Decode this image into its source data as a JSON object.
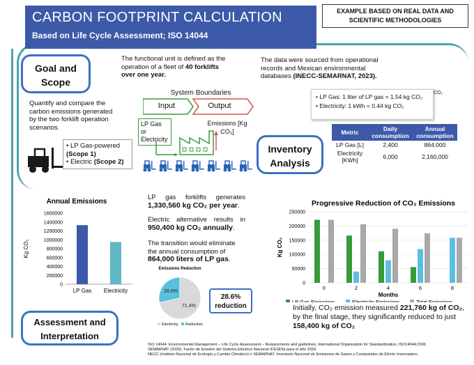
{
  "header": {
    "title": "CARBON FOOTPRINT CALCULATION",
    "subtitle": "Based on Life Cycle Assessment; ISO 14044",
    "example_note": "EXAMPLE BASED ON REAL DATA AND SCIENTIFIC METHODOLOGIES"
  },
  "goal": {
    "label": "Goal and Scope",
    "unit_text_1": "The functional unit is defined as the operation of a fleet of ",
    "unit_bold": "40 forklifts over one year.",
    "quantify_text": "Quantify and compare the carbon emissions generated by the two forklift operation scenarios.",
    "scenario_1_text": "LP Gas-powered ",
    "scenario_1_bold": "(Scope 1)",
    "scenario_2_text": "Electric ",
    "scenario_2_bold": "(Scope 2)"
  },
  "system": {
    "title": "System Boundaries",
    "input_label": "Input",
    "output_label": "Output",
    "source_label": "LP Gas or Electricity",
    "emissions_label": "Emissions [Kg CO₂]"
  },
  "inventory": {
    "label": "Inventory Analysis",
    "source_text": "The data were sourced from operational records and Mexican environmental databases ",
    "source_bold": "(INECC-SEMARNAT, 2023).",
    "factor_1": "LP Gas: 1 liter of LP gas = 1.54 kg CO₂",
    "factor_2": "Electricity: 1 kWh = 0.44 kg CO₂",
    "co2_tag": "CO₂",
    "table": {
      "headers": [
        "Metric",
        "Daily consumption",
        "Annual consumption"
      ],
      "rows": [
        [
          "LP Gas [L]",
          "2,400",
          "864,000"
        ],
        [
          "Electricity [KWh]",
          "6,000",
          "2,160,000"
        ]
      ]
    }
  },
  "interpretation": {
    "p1_text": "LP gas forklifts generates ",
    "p1_bold": "1,330,560 kg CO₂ per year",
    "p1_end": ".",
    "p2_text": "Electric alternative results in ",
    "p2_bold": "950,400 kg CO₂ annually",
    "p2_end": ".",
    "p3_text": "The transition would eliminate the annual consumption of ",
    "p3_bold": "864,000 liters of LP gas",
    "p3_end": ".",
    "reduction_pct": "28.6%",
    "reduction_word": "reduction",
    "summary_text_1": "Initially, CO₂ emission measured ",
    "summary_bold_1": "221,760 kg of CO₂",
    "summary_text_2": ", by the final stage, they significantly reduced to just ",
    "summary_bold_2": "158,400 kg of CO₂"
  },
  "assessment": {
    "label": "Assessment and Interpretation"
  },
  "references": {
    "ref_1": "ISO 14044: Environmental Management – Life Cycle Assessment – Requirements and guidelines, International Organization for Standardization, ISO14044:2006",
    "ref_2": "SEMARNAT (2025). Factor de Emisión del Sistema Eléctrico Nacional (FESEN) para el año 2024.",
    "ref_3": "NECC (Instituto Nacional de Ecología y Cambio Climático) o SEMARNAT. Inventario Nacional de Emisiones de Gases y Compuestos de Efecto Invernadero."
  },
  "colors": {
    "header_blue": "#3d5aa8",
    "teal": "#4aa5a8",
    "lp_bar": "#3d5aa8",
    "elec_bar": "#5fb8c4",
    "green": "#3a9a3a",
    "light_blue": "#5bc0de",
    "gray": "#a8a8a8",
    "red": "#d9534f"
  },
  "chart_data": [
    {
      "type": "bar",
      "title": "Annual Emissions",
      "categories": [
        "LP Gas",
        "Electricity"
      ],
      "values": [
        1330560,
        950400
      ],
      "ylabel": "Kg CO₂",
      "xlabel": "",
      "ylim": [
        0,
        1600000
      ],
      "yticks": [
        0,
        200000,
        400000,
        600000,
        800000,
        1000000,
        1200000,
        1400000,
        1600000
      ],
      "ytick_labels": [
        "0",
        "200000",
        "400000",
        "600000",
        "800000",
        "1000000",
        "1200000",
        "1400000",
        "1600000"
      ]
    },
    {
      "type": "bar",
      "title": "Progressive Reduction of CO₂ Emissions",
      "categories": [
        "0",
        "2",
        "4",
        "6",
        "8"
      ],
      "xlabel": "Months",
      "ylabel": "Kg CO₂",
      "ylim": [
        0,
        250000
      ],
      "yticks": [
        0,
        50000,
        100000,
        150000,
        200000,
        250000
      ],
      "ytick_labels": [
        "0",
        "50000",
        "100000",
        "150000",
        "200000",
        "250000"
      ],
      "series": [
        {
          "name": "LP Gas Emissions",
          "values": [
            221760,
            166320,
            110880,
            55440,
            0
          ]
        },
        {
          "name": "Electricity Emissions",
          "values": [
            0,
            39600,
            79200,
            118800,
            158400
          ]
        },
        {
          "name": "Total Emissions",
          "values": [
            221760,
            205920,
            190080,
            174240,
            158400
          ]
        }
      ]
    },
    {
      "type": "pie",
      "title": "Emissions Reduction",
      "labels": [
        "Electricity",
        "Reduction"
      ],
      "values": [
        71.4,
        28.6
      ],
      "value_labels": [
        "71.4%",
        "28.6%"
      ]
    }
  ]
}
